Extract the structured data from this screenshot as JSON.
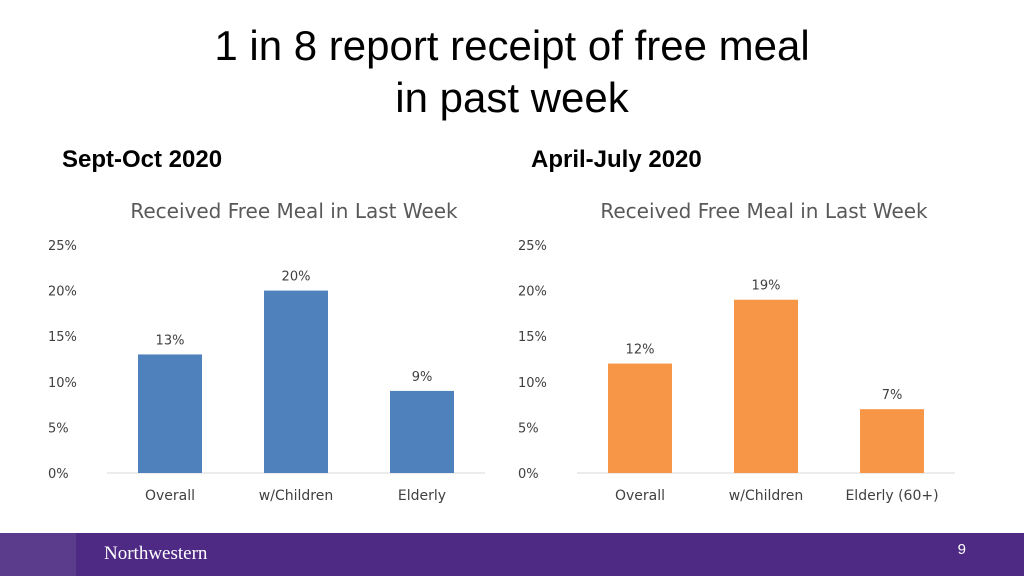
{
  "slide": {
    "title_line1": "1 in 8 report receipt of free meal",
    "title_line2": "in past week",
    "page_number": "9"
  },
  "footer": {
    "brand": "Northwestern",
    "bar_color": "#4e2a84"
  },
  "chart_data": [
    {
      "type": "bar",
      "period": "Sept-Oct 2020",
      "title": "Received Free Meal in Last Week",
      "categories": [
        "Overall",
        "w/Children",
        "Elderly"
      ],
      "values": [
        13,
        20,
        9
      ],
      "labels": [
        "13%",
        "20%",
        "9%"
      ],
      "ylim": [
        0,
        25
      ],
      "yticks": [
        0,
        5,
        10,
        15,
        20,
        25
      ],
      "ytick_labels": [
        "0%",
        "5%",
        "10%",
        "15%",
        "20%",
        "25%"
      ],
      "color": "#4f81bd",
      "grid": false,
      "legend": "none"
    },
    {
      "type": "bar",
      "period": "April-July 2020",
      "title": "Received Free Meal in Last Week",
      "categories": [
        "Overall",
        "w/Children",
        "Elderly (60+)"
      ],
      "values": [
        12,
        19,
        7
      ],
      "labels": [
        "12%",
        "19%",
        "7%"
      ],
      "ylim": [
        0,
        25
      ],
      "yticks": [
        0,
        5,
        10,
        15,
        20,
        25
      ],
      "ytick_labels": [
        "0%",
        "5%",
        "10%",
        "15%",
        "20%",
        "25%"
      ],
      "color": "#f79646",
      "grid": false,
      "legend": "none"
    }
  ]
}
